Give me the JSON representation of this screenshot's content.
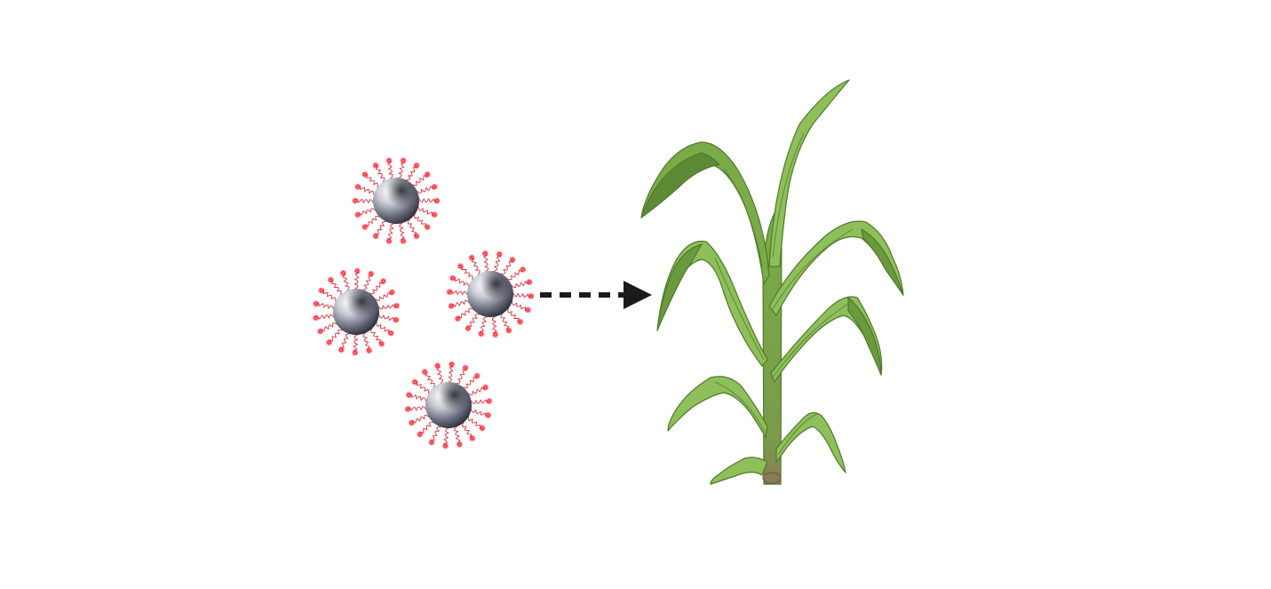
{
  "diagram": {
    "nanoparticle_count": 4,
    "ligands_per_particle": 18,
    "colors": {
      "background": "#ffffff",
      "sphere_highlight": "#ffffff",
      "sphere_mid": "#b9bdc6",
      "sphere_dark": "#2b2d38",
      "ligand_chain": "#e0303a",
      "ligand_head": "#ff1a2a",
      "arrow": "#1a1a1a",
      "leaf_light": "#8fbf5a",
      "leaf_mid": "#7aab48",
      "leaf_dark": "#5e8a35",
      "leaf_outline": "#4f7a2b",
      "stem_base": "#8a7a5a"
    },
    "icons": [
      "nanoparticle-icon",
      "dashed-arrow-icon",
      "corn-plant-icon"
    ]
  }
}
